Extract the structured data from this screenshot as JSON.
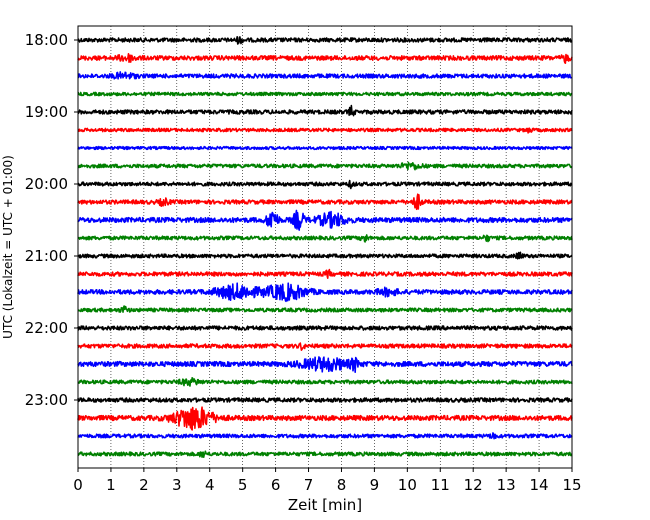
{
  "chart_data": {
    "type": "line",
    "xlabel": "Zeit  [min]",
    "ylabel": "UTC (Lokalzeit = UTC + 01:00)",
    "xlim": [
      0,
      15
    ],
    "x_ticks": [
      "0",
      "1",
      "2",
      "3",
      "4",
      "5",
      "6",
      "7",
      "8",
      "9",
      "10",
      "11",
      "12",
      "13",
      "14",
      "15"
    ],
    "y_ticks": [
      "18:00",
      "19:00",
      "20:00",
      "21:00",
      "22:00",
      "23:00"
    ],
    "grid": {
      "x": "dotted vertical at each minute",
      "y": "none"
    },
    "trace_interval_minutes": 15,
    "trace_colors": [
      "#000000",
      "#ff0000",
      "#0000ff",
      "#008000"
    ],
    "series": [
      {
        "start": "18:00",
        "amplitude": 1.0,
        "events": [
          {
            "t": 4.9,
            "a": 1.4,
            "w": 0.08
          }
        ]
      },
      {
        "start": "18:15",
        "amplitude": 1.1,
        "events": [
          {
            "t": 1.5,
            "a": 1.3,
            "w": 0.25
          },
          {
            "t": 14.8,
            "a": 1.6,
            "w": 0.1
          }
        ]
      },
      {
        "start": "18:30",
        "amplitude": 1.0,
        "events": [
          {
            "t": 1.4,
            "a": 1.2,
            "w": 0.3
          }
        ]
      },
      {
        "start": "18:45",
        "amplitude": 0.8,
        "events": []
      },
      {
        "start": "19:00",
        "amplitude": 1.0,
        "events": [
          {
            "t": 8.3,
            "a": 2.2,
            "w": 0.07
          }
        ]
      },
      {
        "start": "19:15",
        "amplitude": 0.8,
        "events": [
          {
            "t": 13.7,
            "a": 1.6,
            "w": 0.06
          }
        ]
      },
      {
        "start": "19:30",
        "amplitude": 0.7,
        "events": []
      },
      {
        "start": "19:45",
        "amplitude": 0.9,
        "events": [
          {
            "t": 10.1,
            "a": 1.2,
            "w": 0.3
          }
        ]
      },
      {
        "start": "20:00",
        "amplitude": 0.9,
        "events": [
          {
            "t": 8.3,
            "a": 1.3,
            "w": 0.08
          }
        ]
      },
      {
        "start": "20:15",
        "amplitude": 1.0,
        "events": [
          {
            "t": 10.3,
            "a": 3.0,
            "w": 0.12
          },
          {
            "t": 2.6,
            "a": 1.2,
            "w": 0.15
          }
        ]
      },
      {
        "start": "20:30",
        "amplitude": 1.2,
        "events": [
          {
            "t": 5.9,
            "a": 4.5,
            "w": 0.15
          },
          {
            "t": 6.7,
            "a": 4.2,
            "w": 0.15
          },
          {
            "t": 7.7,
            "a": 2.8,
            "w": 0.4
          }
        ]
      },
      {
        "start": "20:45",
        "amplitude": 0.9,
        "events": [
          {
            "t": 8.7,
            "a": 2.0,
            "w": 0.08
          },
          {
            "t": 12.4,
            "a": 1.4,
            "w": 0.08
          }
        ]
      },
      {
        "start": "21:00",
        "amplitude": 0.9,
        "events": [
          {
            "t": 13.4,
            "a": 1.5,
            "w": 0.08
          }
        ]
      },
      {
        "start": "21:15",
        "amplitude": 1.0,
        "events": [
          {
            "t": 7.6,
            "a": 1.3,
            "w": 0.08
          }
        ]
      },
      {
        "start": "21:30",
        "amplitude": 1.1,
        "events": [
          {
            "t": 4.8,
            "a": 3.0,
            "w": 0.6
          },
          {
            "t": 6.3,
            "a": 3.3,
            "w": 0.6
          },
          {
            "t": 9.4,
            "a": 1.3,
            "w": 0.3
          }
        ]
      },
      {
        "start": "21:45",
        "amplitude": 0.9,
        "events": [
          {
            "t": 1.4,
            "a": 1.3,
            "w": 0.1
          }
        ]
      },
      {
        "start": "22:00",
        "amplitude": 1.0,
        "events": []
      },
      {
        "start": "22:15",
        "amplitude": 1.0,
        "events": [
          {
            "t": 6.8,
            "a": 1.6,
            "w": 0.06
          }
        ]
      },
      {
        "start": "22:30",
        "amplitude": 1.2,
        "events": [
          {
            "t": 7.5,
            "a": 2.6,
            "w": 0.7
          },
          {
            "t": 8.4,
            "a": 2.4,
            "w": 0.1
          }
        ]
      },
      {
        "start": "22:45",
        "amplitude": 0.9,
        "events": [
          {
            "t": 3.4,
            "a": 1.2,
            "w": 0.3
          }
        ]
      },
      {
        "start": "23:00",
        "amplitude": 1.0,
        "events": []
      },
      {
        "start": "23:15",
        "amplitude": 1.2,
        "events": [
          {
            "t": 3.5,
            "a": 5.0,
            "w": 0.55
          }
        ]
      },
      {
        "start": "23:30",
        "amplitude": 0.9,
        "events": [
          {
            "t": 12.6,
            "a": 1.8,
            "w": 0.06
          }
        ]
      },
      {
        "start": "23:45",
        "amplitude": 0.9,
        "events": [
          {
            "t": 3.8,
            "a": 1.2,
            "w": 0.1
          }
        ]
      }
    ]
  }
}
